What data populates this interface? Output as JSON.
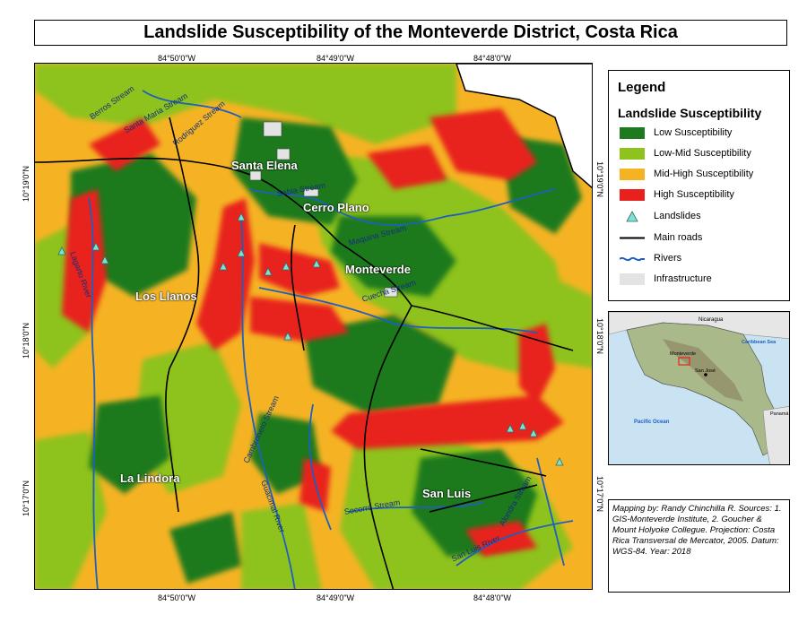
{
  "title": "Landslide Susceptibility of the Monteverde District, Costa Rica",
  "coords": {
    "top": [
      "84°50'0\"W",
      "84°49'0\"W",
      "84°48'0\"W"
    ],
    "bottom": [
      "84°50'0\"W",
      "84°49'0\"W",
      "84°48'0\"W"
    ],
    "left": [
      "10°19'0\"N",
      "10°18'0\"N",
      "10°17'0\"N"
    ],
    "right": [
      "10°19'0\"N",
      "10°18'0\"N",
      "10°17'0\"N"
    ]
  },
  "places": {
    "santa_elena": "Santa Elena",
    "cerro_plano": "Cerro Plano",
    "monteverde": "Monteverde",
    "los_llanos": "Los Llanos",
    "la_lindora": "La Lindora",
    "san_luis": "San Luis"
  },
  "rivers": {
    "berros": "Berros Stream",
    "santa_maria": "Santa Maria Stream",
    "rodriguez": "Rodriguez Stream",
    "sabia": "Sabia Stream",
    "maquina": "Maquina Stream",
    "cuecha": "Cuecha Stream",
    "lagarto": "Lagarto River",
    "cambronero": "Cambronero Stream",
    "guacimal": "Guacimal River",
    "socorro": "Socorro Stream",
    "san_luis": "San Luis River",
    "alondra": "Alondra Stream"
  },
  "legend": {
    "heading": "Legend",
    "subheading": "Landslide Susceptibility",
    "items": [
      {
        "label": "Low Susceptibility",
        "color": "#1e7a1e"
      },
      {
        "label": "Low-Mid Susceptibility",
        "color": "#8ec21c"
      },
      {
        "label": "Mid-High Susceptibility",
        "color": "#f5b324"
      },
      {
        "label": "High Susceptibility",
        "color": "#e8211d"
      },
      {
        "label": "Landslides",
        "icon": "triangle-icon",
        "color": "#7fe0d4"
      },
      {
        "label": "Main roads",
        "icon": "line-icon",
        "color": "#000000"
      },
      {
        "label": "Rivers",
        "icon": "wavy-line-icon",
        "color": "#1f5fbf"
      },
      {
        "label": "Infrastructure",
        "color": "#e3e3e3"
      }
    ]
  },
  "inset": {
    "nicaragua": "Nicaragua",
    "caribbean": "Caribbean Sea",
    "monteverde": "Monteverde",
    "san_jose": "San José",
    "pacific": "Pacific Ocean",
    "panama": "Panamá"
  },
  "credits": "Mapping by: Randy Chinchilla R.   Sources: 1. GIS-Monteverde Institute, 2. Goucher & Mount Holyoke Collegue.   Projection: Costa Rica Transversal de Mercator, 2005. Datum: WGS-84.   Year: 2018"
}
